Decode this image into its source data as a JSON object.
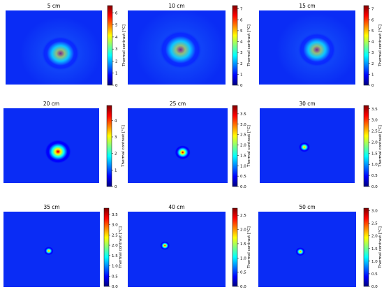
{
  "colors": {
    "background": "#ffffff",
    "jet": [
      "#00007f",
      "#0000ff",
      "#007fff",
      "#00ffff",
      "#7fff7f",
      "#ffff00",
      "#ff7f00",
      "#ff0000",
      "#7f0000"
    ]
  },
  "chart_data": [
    {
      "type": "heatmap",
      "title": "5 cm",
      "colorbar_label": "Thermal contrast [°C]",
      "colorbar_range": [
        0,
        6.6
      ],
      "colorbar_ticks": [
        "0",
        "1",
        "2",
        "3",
        "4",
        "5",
        "6"
      ],
      "hotspot": {
        "x": 0.57,
        "y": 0.58,
        "peak_value": 6.5,
        "spread": 0.2
      }
    },
    {
      "type": "heatmap",
      "title": "10 cm",
      "colorbar_label": "Thermal contrast [°C]",
      "colorbar_range": [
        0,
        7.3
      ],
      "colorbar_ticks": [
        "0",
        "1",
        "2",
        "3",
        "4",
        "5",
        "6",
        "7"
      ],
      "hotspot": {
        "x": 0.54,
        "y": 0.53,
        "peak_value": 7.1,
        "spread": 0.22
      }
    },
    {
      "type": "heatmap",
      "title": "15 cm",
      "colorbar_label": "Thermal contrast [°C]",
      "colorbar_range": [
        0,
        7.3
      ],
      "colorbar_ticks": [
        "0",
        "1",
        "2",
        "3",
        "4",
        "5",
        "6",
        "7"
      ],
      "hotspot": {
        "x": 0.6,
        "y": 0.53,
        "peak_value": 7.0,
        "spread": 0.2
      }
    },
    {
      "type": "heatmap",
      "title": "20 cm",
      "colorbar_label": "Thermal contrast [°C]",
      "colorbar_range": [
        0,
        4.9
      ],
      "colorbar_ticks": [
        "0",
        "1",
        "2",
        "3",
        "4"
      ],
      "hotspot": {
        "x": 0.57,
        "y": 0.58,
        "peak_value": 4.7,
        "spread": 0.14
      }
    },
    {
      "type": "heatmap",
      "title": "25 cm",
      "colorbar_label": "Thermal contrast [°C]",
      "colorbar_range": [
        0,
        3.9
      ],
      "colorbar_ticks": [
        "0.0",
        "0.5",
        "1.0",
        "1.5",
        "2.0",
        "2.5",
        "3.0",
        "3.5"
      ],
      "hotspot": {
        "x": 0.55,
        "y": 0.59,
        "peak_value": 3.7,
        "spread": 0.08
      }
    },
    {
      "type": "heatmap",
      "title": "30 cm",
      "colorbar_label": "Thermal contrast [°C]",
      "colorbar_range": [
        0,
        3.65
      ],
      "colorbar_ticks": [
        "0.0",
        "0.5",
        "1.0",
        "1.5",
        "2.0",
        "2.5",
        "3.0",
        "3.5"
      ],
      "hotspot": {
        "x": 0.47,
        "y": 0.52,
        "peak_value": 3.4,
        "spread": 0.06
      }
    },
    {
      "type": "heatmap",
      "title": "35 cm",
      "colorbar_label": "Thermal contrast [°C]",
      "colorbar_range": [
        0,
        3.8
      ],
      "colorbar_ticks": [
        "0.0",
        "0.5",
        "1.0",
        "1.5",
        "2.0",
        "2.5",
        "3.0",
        "3.5"
      ],
      "hotspot": {
        "x": 0.47,
        "y": 0.52,
        "peak_value": 3.5,
        "spread": 0.05
      }
    },
    {
      "type": "heatmap",
      "title": "40 cm",
      "colorbar_label": "Thermal contrast [°C]",
      "colorbar_range": [
        0,
        2.75
      ],
      "colorbar_ticks": [
        "0.0",
        "0.5",
        "1.0",
        "1.5",
        "2.0",
        "2.5"
      ],
      "hotspot": {
        "x": 0.38,
        "y": 0.45,
        "peak_value": 2.6,
        "spread": 0.05
      }
    },
    {
      "type": "heatmap",
      "title": "50 cm",
      "colorbar_label": "Thermal contrast [°C]",
      "colorbar_range": [
        0,
        3.1
      ],
      "colorbar_ticks": [
        "0.0",
        "0.5",
        "1.0",
        "1.5",
        "2.0",
        "2.5",
        "3.0"
      ],
      "hotspot": {
        "x": 0.43,
        "y": 0.53,
        "peak_value": 2.9,
        "spread": 0.05
      }
    }
  ]
}
